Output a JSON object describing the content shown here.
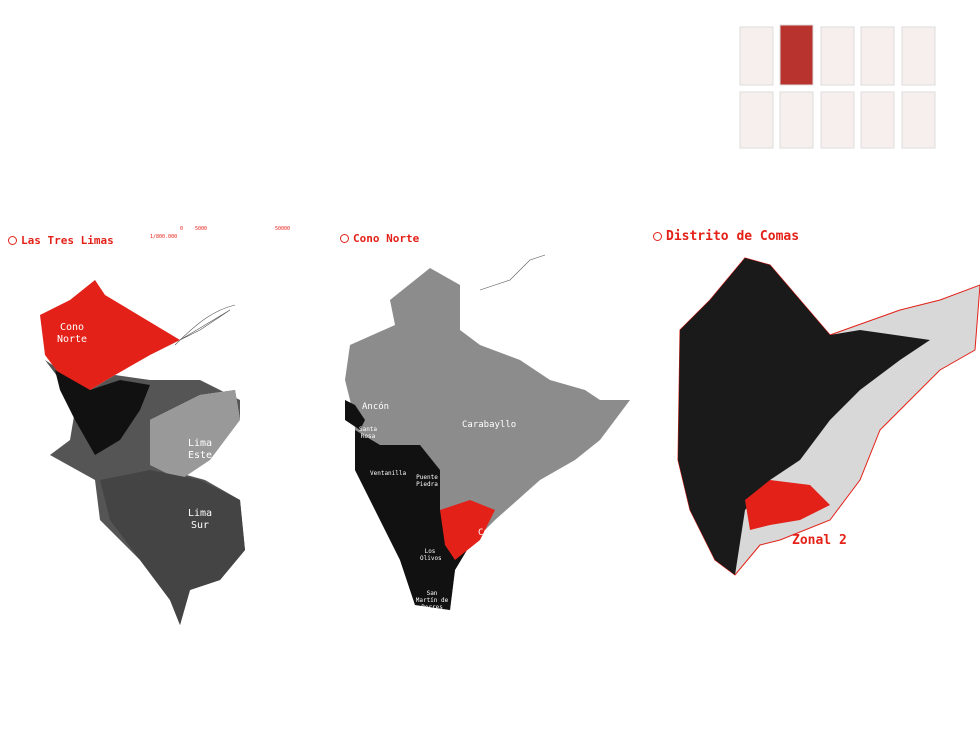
{
  "panels": [
    {
      "title": "Las Tres Limas",
      "labels": [
        "Cono Norte",
        "Lima Este",
        "Lima Sur"
      ],
      "scale": {
        "ratio": "1/800.000",
        "ticks": [
          "0",
          "5000",
          "50000"
        ]
      }
    },
    {
      "title": "Cono Norte",
      "labels": [
        "Ancón",
        "Santa Rosa",
        "Carabayllo",
        "Ventanilla",
        "Puente Piedra",
        "Comas",
        "Los Olivos",
        "San Martín de Porres"
      ]
    },
    {
      "title": "Distrito de Comas",
      "labels": [
        "Zonal 2"
      ]
    }
  ]
}
